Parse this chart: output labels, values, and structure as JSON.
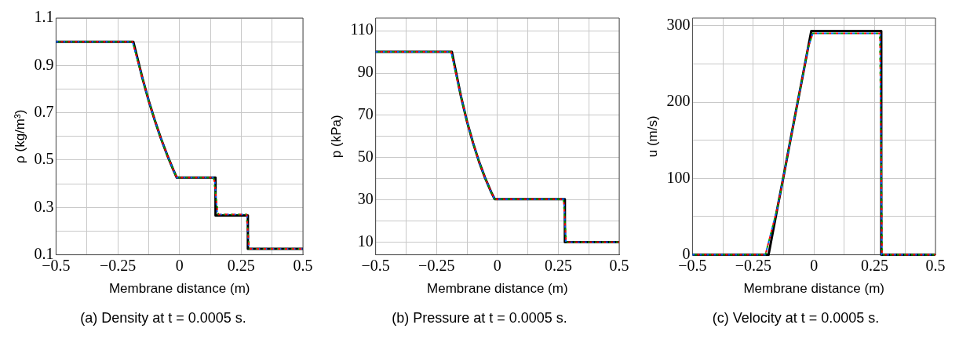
{
  "chart_data": [
    {
      "type": "line",
      "xlabel": "Membrane distance (m)",
      "ylabel": "ρ (kg/m³)",
      "annotations": [
        "(a) Density at t = 0.0005 s."
      ],
      "xlim": [
        -0.5,
        0.5
      ],
      "ylim": [
        0.1,
        1.1
      ],
      "xticks": [
        {
          "value": -0.5,
          "label": "−0.5"
        },
        {
          "value": -0.375,
          "label": null
        },
        {
          "value": -0.25,
          "label": "−0.25"
        },
        {
          "value": -0.125,
          "label": null
        },
        0,
        {
          "value": 0.125,
          "label": null
        },
        0.25,
        {
          "value": 0.375,
          "label": null
        },
        0.5
      ],
      "yticks": [
        0.1,
        {
          "value": 0.2,
          "label": null
        },
        0.3,
        {
          "value": 0.4,
          "label": null
        },
        0.5,
        {
          "value": 0.6,
          "label": null
        },
        0.7,
        {
          "value": 0.8,
          "label": null
        },
        0.9,
        {
          "value": 1.0,
          "label": null
        },
        1.1
      ],
      "grid": true,
      "legend": false,
      "marker": "none",
      "series": [
        {
          "color": "#000000",
          "line_style": "solid",
          "x": [
            -0.5,
            -0.187,
            -0.15,
            -0.125,
            -0.1,
            -0.075,
            -0.05,
            -0.025,
            -0.011,
            0.146,
            0.146,
            0.277,
            0.277,
            0.5
          ],
          "values": [
            1,
            1,
            0.846,
            0.752,
            0.668,
            0.591,
            0.522,
            0.459,
            0.426,
            0.426,
            0.266,
            0.266,
            0.125,
            0.125
          ]
        },
        {
          "color": "#ff0000",
          "line_style": "dashed",
          "x": [
            -0.5,
            -0.19,
            -0.15,
            -0.125,
            -0.1,
            -0.075,
            -0.05,
            -0.025,
            -0.011,
            0.14,
            0.155,
            0.272,
            0.282,
            0.5
          ],
          "values": [
            1,
            1,
            0.846,
            0.752,
            0.668,
            0.591,
            0.522,
            0.459,
            0.426,
            0.426,
            0.27,
            0.27,
            0.125,
            0.125
          ]
        },
        {
          "color": "#00a000",
          "line_style": "dashed",
          "x": [
            -0.5,
            -0.19,
            -0.15,
            -0.125,
            -0.1,
            -0.075,
            -0.05,
            -0.025,
            -0.011,
            0.138,
            0.157,
            0.271,
            0.283,
            0.5
          ],
          "values": [
            1,
            1,
            0.846,
            0.752,
            0.668,
            0.591,
            0.522,
            0.459,
            0.426,
            0.426,
            0.27,
            0.27,
            0.125,
            0.125
          ]
        },
        {
          "color": "#0060ff",
          "line_style": "dotted",
          "x": [
            -0.5,
            -0.19,
            -0.15,
            -0.125,
            -0.1,
            -0.075,
            -0.05,
            -0.025,
            -0.011,
            0.142,
            0.153,
            0.273,
            0.281,
            0.5
          ],
          "values": [
            1,
            1,
            0.846,
            0.752,
            0.668,
            0.591,
            0.522,
            0.459,
            0.426,
            0.426,
            0.27,
            0.27,
            0.125,
            0.125
          ]
        }
      ]
    },
    {
      "type": "line",
      "xlabel": "Membrane distance (m)",
      "ylabel": "p (kPa)",
      "annotations": [
        "(b) Pressure at t = 0.0005 s."
      ],
      "xlim": [
        -0.5,
        0.5
      ],
      "ylim": [
        4,
        116
      ],
      "xticks": [
        {
          "value": -0.5,
          "label": "−0.5"
        },
        {
          "value": -0.375,
          "label": null
        },
        {
          "value": -0.25,
          "label": "−0.25"
        },
        {
          "value": -0.125,
          "label": null
        },
        0,
        {
          "value": 0.125,
          "label": null
        },
        0.25,
        {
          "value": 0.375,
          "label": null
        },
        0.5
      ],
      "yticks": [
        10,
        {
          "value": 20,
          "label": null
        },
        30,
        {
          "value": 40,
          "label": null
        },
        50,
        {
          "value": 60,
          "label": null
        },
        70,
        {
          "value": 80,
          "label": null
        },
        90,
        {
          "value": 100,
          "label": null
        },
        110
      ],
      "grid": true,
      "legend": false,
      "marker": "none",
      "series": [
        {
          "color": "#000000",
          "line_style": "solid",
          "x": [
            -0.5,
            -0.187,
            -0.15,
            -0.125,
            -0.1,
            -0.075,
            -0.05,
            -0.025,
            -0.011,
            0.277,
            0.277,
            0.5
          ],
          "values": [
            100,
            100,
            79.1,
            67.1,
            56.9,
            47.9,
            40.2,
            33.5,
            30.3,
            30.3,
            10,
            10
          ]
        },
        {
          "color": "#ff0000",
          "line_style": "dashed",
          "x": [
            -0.5,
            -0.19,
            -0.15,
            -0.125,
            -0.1,
            -0.075,
            -0.05,
            -0.025,
            -0.011,
            0.272,
            0.282,
            0.5
          ],
          "values": [
            100,
            100,
            79.1,
            67.1,
            56.9,
            47.9,
            40.2,
            33.5,
            30.3,
            30.3,
            10,
            10
          ]
        },
        {
          "color": "#00a000",
          "line_style": "dashed",
          "x": [
            -0.5,
            -0.19,
            -0.15,
            -0.125,
            -0.1,
            -0.075,
            -0.05,
            -0.025,
            -0.011,
            0.271,
            0.283,
            0.5
          ],
          "values": [
            100,
            100,
            79.1,
            67.1,
            56.9,
            47.9,
            40.2,
            33.5,
            30.3,
            30.3,
            10,
            10
          ]
        },
        {
          "color": "#0060ff",
          "line_style": "dotted",
          "x": [
            -0.5,
            -0.19,
            -0.15,
            -0.125,
            -0.1,
            -0.075,
            -0.05,
            -0.025,
            -0.011,
            0.273,
            0.281,
            0.5
          ],
          "values": [
            100,
            100,
            79.1,
            67.1,
            56.9,
            47.9,
            40.2,
            33.5,
            30.3,
            30.3,
            10,
            10
          ]
        }
      ]
    },
    {
      "type": "line",
      "xlabel": "Membrane distance (m)",
      "ylabel": "u (m/s)",
      "annotations": [
        "(c) Velocity at t = 0.0005 s."
      ],
      "xlim": [
        -0.5,
        0.5
      ],
      "ylim": [
        0,
        310
      ],
      "xticks": [
        {
          "value": -0.5,
          "label": "−0.5"
        },
        {
          "value": -0.375,
          "label": null
        },
        {
          "value": -0.25,
          "label": "−0.25"
        },
        {
          "value": -0.125,
          "label": null
        },
        0,
        {
          "value": 0.125,
          "label": null
        },
        0.25,
        {
          "value": 0.375,
          "label": null
        },
        0.5
      ],
      "yticks": [
        0,
        {
          "value": 50,
          "label": null
        },
        100,
        {
          "value": 150,
          "label": null
        },
        200,
        {
          "value": 250,
          "label": null
        },
        300
      ],
      "grid": true,
      "legend": false,
      "marker": "none",
      "series": [
        {
          "color": "#000000",
          "line_style": "solid",
          "x": [
            -0.5,
            -0.187,
            -0.15,
            -0.125,
            -0.1,
            -0.075,
            -0.05,
            -0.025,
            -0.011,
            0.277,
            0.277,
            0.5
          ],
          "values": [
            0,
            0,
            62,
            103,
            145,
            187,
            228,
            270,
            293,
            293,
            0,
            0
          ]
        },
        {
          "color": "#ff0000",
          "line_style": "dashed",
          "x": [
            -0.5,
            -0.2,
            -0.15,
            -0.125,
            -0.1,
            -0.075,
            -0.05,
            -0.025,
            -0.005,
            0.272,
            0.28,
            0.5
          ],
          "values": [
            0,
            0,
            62,
            103,
            145,
            187,
            228,
            270,
            290,
            290,
            0,
            0
          ]
        },
        {
          "color": "#00a000",
          "line_style": "dashed",
          "x": [
            -0.5,
            -0.2,
            -0.15,
            -0.125,
            -0.1,
            -0.075,
            -0.05,
            -0.025,
            -0.005,
            0.271,
            0.281,
            0.5
          ],
          "values": [
            0,
            0,
            62,
            103,
            145,
            187,
            228,
            270,
            290,
            290,
            0,
            0
          ]
        },
        {
          "color": "#0060ff",
          "line_style": "dotted",
          "x": [
            -0.5,
            -0.2,
            -0.15,
            -0.125,
            -0.1,
            -0.075,
            -0.05,
            -0.025,
            -0.005,
            0.273,
            0.279,
            0.5
          ],
          "values": [
            0,
            0,
            62,
            103,
            145,
            187,
            228,
            270,
            290,
            290,
            0,
            0
          ]
        }
      ]
    }
  ]
}
